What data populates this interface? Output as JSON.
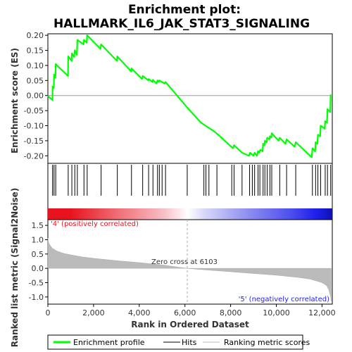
{
  "chart_data": [
    {
      "type": "line",
      "title_line1": "Enrichment plot:",
      "title_line2": "HALLMARK_IL6_JAK_STAT3_SIGNALING",
      "ylabel": "Enrichment score (ES)",
      "xlim": [
        0,
        12450
      ],
      "ylim": [
        -0.225,
        0.205
      ],
      "yticks": [
        -0.2,
        -0.15,
        -0.1,
        -0.05,
        0.0,
        0.05,
        0.1,
        0.15,
        0.2
      ],
      "ytick_labels": [
        "-0.20",
        "-0.15",
        "-0.10",
        "-0.05",
        "0.00",
        "0.05",
        "0.10",
        "0.15",
        "0.20"
      ],
      "series": [
        {
          "name": "Enrichment profile",
          "color": "#00ff00",
          "points": [
            [
              0,
              0.0
            ],
            [
              50,
              -0.005
            ],
            [
              200,
              -0.015
            ],
            [
              205,
              0.03
            ],
            [
              260,
              0.025
            ],
            [
              270,
              0.07
            ],
            [
              330,
              0.06
            ],
            [
              345,
              0.105
            ],
            [
              400,
              0.1
            ],
            [
              880,
              0.065
            ],
            [
              890,
              0.13
            ],
            [
              1040,
              0.115
            ],
            [
              1050,
              0.14
            ],
            [
              1150,
              0.128
            ],
            [
              1180,
              0.15
            ],
            [
              1270,
              0.135
            ],
            [
              1290,
              0.185
            ],
            [
              1560,
              0.17
            ],
            [
              1580,
              0.185
            ],
            [
              1700,
              0.175
            ],
            [
              1720,
              0.2
            ],
            [
              2300,
              0.155
            ],
            [
              2330,
              0.17
            ],
            [
              3020,
              0.115
            ],
            [
              3040,
              0.13
            ],
            [
              3650,
              0.08
            ],
            [
              3660,
              0.09
            ],
            [
              4120,
              0.055
            ],
            [
              4150,
              0.065
            ],
            [
              4400,
              0.05
            ],
            [
              4410,
              0.055
            ],
            [
              4580,
              0.045
            ],
            [
              4600,
              0.052
            ],
            [
              4750,
              0.04
            ],
            [
              4800,
              0.05
            ],
            [
              4850,
              0.045
            ],
            [
              4880,
              0.05
            ],
            [
              5100,
              0.04
            ],
            [
              5150,
              0.045
            ],
            [
              6103,
              -0.04
            ],
            [
              6700,
              -0.09
            ],
            [
              6900,
              -0.1
            ],
            [
              7300,
              -0.12
            ],
            [
              7600,
              -0.14
            ],
            [
              8100,
              -0.175
            ],
            [
              8150,
              -0.165
            ],
            [
              8500,
              -0.19
            ],
            [
              8800,
              -0.2
            ],
            [
              8850,
              -0.19
            ],
            [
              9000,
              -0.2
            ],
            [
              9050,
              -0.19
            ],
            [
              9150,
              -0.2
            ],
            [
              9200,
              -0.185
            ],
            [
              9250,
              -0.19
            ],
            [
              9300,
              -0.18
            ],
            [
              9400,
              -0.185
            ],
            [
              9420,
              -0.16
            ],
            [
              9480,
              -0.165
            ],
            [
              9500,
              -0.15
            ],
            [
              9580,
              -0.155
            ],
            [
              9600,
              -0.14
            ],
            [
              9700,
              -0.145
            ],
            [
              9720,
              -0.135
            ],
            [
              9780,
              -0.14
            ],
            [
              9800,
              -0.125
            ],
            [
              10100,
              -0.15
            ],
            [
              10150,
              -0.14
            ],
            [
              10400,
              -0.16
            ],
            [
              10450,
              -0.145
            ],
            [
              10800,
              -0.17
            ],
            [
              10850,
              -0.155
            ],
            [
              11550,
              -0.205
            ],
            [
              11580,
              -0.175
            ],
            [
              11700,
              -0.185
            ],
            [
              11720,
              -0.155
            ],
            [
              11800,
              -0.16
            ],
            [
              11820,
              -0.13
            ],
            [
              11920,
              -0.135
            ],
            [
              11940,
              -0.1
            ],
            [
              12120,
              -0.11
            ],
            [
              12140,
              -0.085
            ],
            [
              12220,
              -0.09
            ],
            [
              12240,
              -0.045
            ],
            [
              12360,
              -0.055
            ],
            [
              12380,
              0.003
            ]
          ]
        }
      ]
    },
    {
      "type": "heatmap",
      "hits": [
        205,
        270,
        345,
        890,
        1050,
        1180,
        1290,
        1580,
        1720,
        2330,
        3040,
        3660,
        4150,
        4410,
        4600,
        4800,
        4880,
        5000,
        5150,
        6100,
        6830,
        6920,
        7050,
        7400,
        8050,
        8150,
        8500,
        8830,
        8950,
        9050,
        9200,
        9280,
        9420,
        9500,
        9600,
        9720,
        9800,
        10150,
        10450,
        10850,
        11580,
        11720,
        11820,
        11940,
        12140,
        12240,
        12380
      ],
      "colors": {
        "positive": "#e8131f",
        "negative": "#2020ee",
        "neutral": "#ffffff"
      },
      "label_positive": "'4' (positively correlated)",
      "label_negative": "'5' (negatively correlated)"
    },
    {
      "type": "area",
      "ylabel": "Ranked list metric (Signal2Noise)",
      "xlabel": "Rank in Ordered Dataset",
      "xlim": [
        0,
        12450
      ],
      "ylim": [
        -1.25,
        1.7
      ],
      "xticks": [
        0,
        2000,
        4000,
        6000,
        8000,
        10000,
        12000
      ],
      "xtick_labels": [
        "0",
        "2,000",
        "4,000",
        "6,000",
        "8,000",
        "10,000",
        "12,000"
      ],
      "yticks": [
        -1.0,
        -0.5,
        0.0,
        0.5,
        1.0,
        1.5
      ],
      "ytick_labels": [
        "-1.0",
        "-0.5",
        "0.0",
        "0.5",
        "1.0",
        "1.5"
      ],
      "zero_cross": 6103,
      "zero_cross_label": "Zero cross at 6103",
      "curve": [
        [
          0,
          1.05
        ],
        [
          30,
          0.9
        ],
        [
          100,
          0.8
        ],
        [
          200,
          0.7
        ],
        [
          400,
          0.6
        ],
        [
          700,
          0.52
        ],
        [
          1000,
          0.47
        ],
        [
          1500,
          0.4
        ],
        [
          2000,
          0.35
        ],
        [
          3000,
          0.27
        ],
        [
          4000,
          0.2
        ],
        [
          5000,
          0.12
        ],
        [
          6103,
          0.0
        ],
        [
          7000,
          -0.06
        ],
        [
          8000,
          -0.12
        ],
        [
          9000,
          -0.18
        ],
        [
          10000,
          -0.24
        ],
        [
          11000,
          -0.32
        ],
        [
          11500,
          -0.38
        ],
        [
          12000,
          -0.5
        ],
        [
          12200,
          -0.6
        ],
        [
          12300,
          -0.75
        ],
        [
          12380,
          -1.0
        ],
        [
          12400,
          -1.15
        ]
      ]
    }
  ],
  "legend": {
    "items": [
      {
        "label": "Enrichment profile",
        "color": "#00ff00"
      },
      {
        "label": "Hits",
        "color": "#000000"
      },
      {
        "label": "Ranking metric scores",
        "color": "#bbbbbb"
      }
    ]
  }
}
